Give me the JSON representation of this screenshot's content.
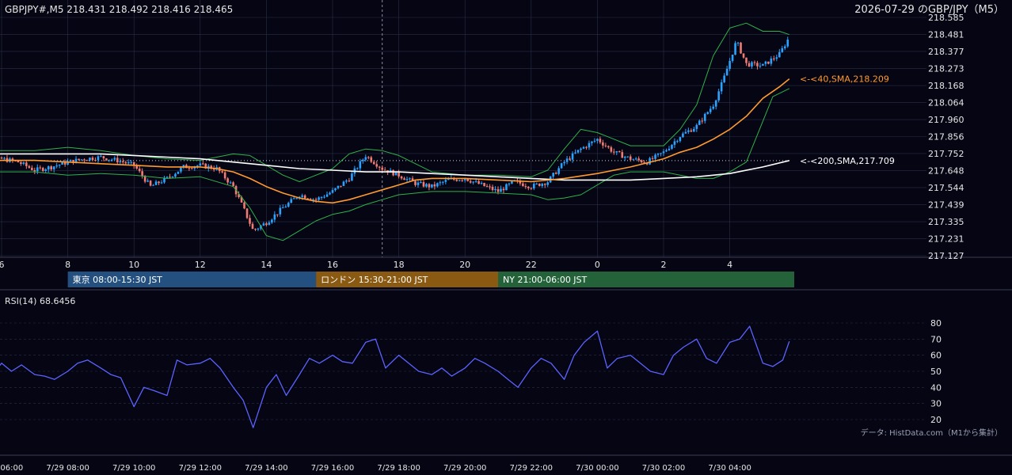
{
  "header": {
    "symbol_line": "GBPJPY#,M5 218.431 218.492 218.416 218.465",
    "title": "2026-07-29 のGBP/JPY（M5）"
  },
  "colors": {
    "background": "#050514",
    "grid": "#2a2f45",
    "bull": "#29a3ff",
    "bear": "#f07b73",
    "sma40": "#ff9a2e",
    "sma200": "#ffffff",
    "bollinger": "#2fb24a",
    "rsi": "#5b63ff",
    "tokyo": "#24507f",
    "london": "#8a5a12",
    "ny": "#24633a"
  },
  "chart_data": [
    {
      "type": "candlestick",
      "symbol": "GBPJPY#",
      "timeframe": "M5",
      "ohlc_last": {
        "open": 218.431,
        "high": 218.492,
        "low": 218.416,
        "close": 218.465
      },
      "ylim": [
        217.127,
        218.585
      ],
      "y_ticks": [
        "218.585",
        "218.481",
        "218.377",
        "218.273",
        "218.168",
        "218.064",
        "217.960",
        "217.856",
        "217.752",
        "217.648",
        "217.544",
        "217.439",
        "217.335",
        "217.231",
        "217.127"
      ],
      "x_ticks": [
        "6",
        "8",
        "10",
        "12",
        "14",
        "16",
        "18",
        "20",
        "22",
        "0",
        "2",
        "4"
      ],
      "x_tick_hours": [
        6,
        8,
        10,
        12,
        14,
        16,
        18,
        20,
        22,
        24,
        26,
        28
      ],
      "indicators": [
        {
          "name": "<-<40,SMA,218.209",
          "value": 218.209
        },
        {
          "name": "<-<200,SMA,217.709",
          "value": 217.709
        }
      ],
      "reference_line": 217.709,
      "vertical_marker_hour": 17.5,
      "sessions": [
        {
          "label": "東京 08:00-15:30 JST",
          "start": 8,
          "end": 15.5
        },
        {
          "label": "ロンドン 15:30-21:00 JST",
          "start": 15.5,
          "end": 21
        },
        {
          "label": "NY 21:00-06:00 JST",
          "start": 21,
          "end": 30
        }
      ],
      "close_path": {
        "hours": [
          5.0,
          5.5,
          6.0,
          6.5,
          7.0,
          7.5,
          8.0,
          8.5,
          9.0,
          9.5,
          10.0,
          10.5,
          11.0,
          11.5,
          12.0,
          12.5,
          13.0,
          13.3,
          13.6,
          14.0,
          14.5,
          15.0,
          15.5,
          16.0,
          16.5,
          17.0,
          17.5,
          18.0,
          18.5,
          19.0,
          19.5,
          20.0,
          20.5,
          21.0,
          21.5,
          22.0,
          22.5,
          23.0,
          23.5,
          24.0,
          24.5,
          25.0,
          25.5,
          26.0,
          26.5,
          27.0,
          27.5,
          27.8,
          28.2,
          28.5,
          29.0,
          29.5,
          29.8
        ],
        "close": [
          217.7,
          217.68,
          217.72,
          217.7,
          217.65,
          217.67,
          217.7,
          217.72,
          217.73,
          217.71,
          217.68,
          217.55,
          217.6,
          217.67,
          217.68,
          217.66,
          217.55,
          217.42,
          217.28,
          217.33,
          217.42,
          217.5,
          217.47,
          217.52,
          217.6,
          217.74,
          217.66,
          217.62,
          217.57,
          217.55,
          217.59,
          217.6,
          217.56,
          217.52,
          217.58,
          217.55,
          217.58,
          217.7,
          217.78,
          217.84,
          217.76,
          217.72,
          217.7,
          217.76,
          217.86,
          217.92,
          218.05,
          218.2,
          218.44,
          218.3,
          218.29,
          218.36,
          218.465
        ]
      },
      "sma40": {
        "hours": [
          5.0,
          6.0,
          7.0,
          8.0,
          9.0,
          10.0,
          11.0,
          12.0,
          12.5,
          13.0,
          13.5,
          14.0,
          14.5,
          15.0,
          15.5,
          16.0,
          16.5,
          17.0,
          17.5,
          18.0,
          18.5,
          19.0,
          20.0,
          21.0,
          22.0,
          23.0,
          24.0,
          25.0,
          26.0,
          26.5,
          27.0,
          27.5,
          28.0,
          28.5,
          29.0,
          29.5,
          29.8
        ],
        "values": [
          217.7,
          217.71,
          217.71,
          217.7,
          217.69,
          217.68,
          217.67,
          217.67,
          217.66,
          217.64,
          217.6,
          217.55,
          217.51,
          217.48,
          217.46,
          217.45,
          217.47,
          217.5,
          217.53,
          217.56,
          217.59,
          217.6,
          217.6,
          217.59,
          217.58,
          217.6,
          217.63,
          217.67,
          217.72,
          217.76,
          217.79,
          217.84,
          217.9,
          217.98,
          218.09,
          218.16,
          218.209
        ]
      },
      "sma200": {
        "hours": [
          5.0,
          6.0,
          7.0,
          8.0,
          9.0,
          10.0,
          11.0,
          12.0,
          13.0,
          14.0,
          15.0,
          16.0,
          17.0,
          18.0,
          19.0,
          20.0,
          21.0,
          22.0,
          23.0,
          24.0,
          25.0,
          26.0,
          27.0,
          28.0,
          29.0,
          29.8
        ],
        "values": [
          217.75,
          217.75,
          217.75,
          217.75,
          217.75,
          217.74,
          217.73,
          217.72,
          217.7,
          217.68,
          217.66,
          217.65,
          217.64,
          217.64,
          217.63,
          217.62,
          217.61,
          217.6,
          217.59,
          217.59,
          217.59,
          217.6,
          217.61,
          217.63,
          217.67,
          217.709
        ]
      },
      "bollinger_upper": {
        "hours": [
          5.0,
          6.0,
          7.0,
          8.0,
          9.0,
          10.0,
          11.0,
          12.0,
          13.0,
          13.5,
          14.0,
          14.5,
          15.0,
          16.0,
          16.5,
          17.0,
          17.5,
          18.0,
          19.0,
          20.0,
          21.0,
          22.0,
          22.5,
          23.0,
          23.5,
          24.0,
          25.0,
          26.0,
          26.5,
          27.0,
          27.5,
          28.0,
          28.5,
          29.0,
          29.5,
          29.8
        ],
        "values": [
          217.77,
          217.77,
          217.77,
          217.79,
          217.77,
          217.74,
          217.72,
          217.71,
          217.75,
          217.74,
          217.68,
          217.62,
          217.58,
          217.66,
          217.75,
          217.78,
          217.77,
          217.74,
          217.64,
          217.62,
          217.62,
          217.61,
          217.65,
          217.78,
          217.9,
          217.88,
          217.8,
          217.8,
          217.9,
          218.05,
          218.35,
          218.52,
          218.55,
          218.5,
          218.5,
          218.48
        ]
      },
      "bollinger_lower": {
        "hours": [
          5.0,
          6.0,
          7.0,
          8.0,
          9.0,
          10.0,
          11.0,
          12.0,
          13.0,
          13.5,
          14.0,
          14.5,
          15.0,
          15.5,
          16.0,
          16.5,
          17.0,
          17.5,
          18.0,
          19.0,
          20.0,
          21.0,
          22.0,
          22.5,
          23.0,
          23.5,
          24.0,
          24.5,
          25.0,
          26.0,
          26.5,
          27.0,
          27.5,
          28.0,
          28.5,
          29.0,
          29.3,
          29.8
        ],
        "values": [
          217.64,
          217.64,
          217.64,
          217.62,
          217.63,
          217.62,
          217.6,
          217.61,
          217.55,
          217.42,
          217.25,
          217.22,
          217.28,
          217.34,
          217.38,
          217.4,
          217.44,
          217.47,
          217.5,
          217.52,
          217.52,
          217.51,
          217.5,
          217.47,
          217.48,
          217.5,
          217.56,
          217.62,
          217.64,
          217.64,
          217.62,
          217.6,
          217.6,
          217.64,
          217.7,
          217.95,
          218.1,
          218.15
        ]
      }
    },
    {
      "type": "line",
      "name": "RSI(14) 68.6456",
      "ylim": [
        15,
        85
      ],
      "y_ticks": [
        "80",
        "70",
        "60",
        "50",
        "40",
        "30",
        "20"
      ],
      "x_ticks": [
        "7/29 06:00",
        "7/29 08:00",
        "7/29 10:00",
        "7/29 12:00",
        "7/29 14:00",
        "7/29 16:00",
        "7/29 18:00",
        "7/29 20:00",
        "7/29 22:00",
        "7/30 00:00",
        "7/30 02:00",
        "7/30 04:00"
      ],
      "hours": [
        5.0,
        5.3,
        5.6,
        6.0,
        6.3,
        6.6,
        7.0,
        7.3,
        7.6,
        8.0,
        8.3,
        8.6,
        9.0,
        9.3,
        9.6,
        10.0,
        10.3,
        10.6,
        11.0,
        11.3,
        11.6,
        12.0,
        12.3,
        12.6,
        13.0,
        13.3,
        13.6,
        14.0,
        14.3,
        14.6,
        15.0,
        15.3,
        15.6,
        16.0,
        16.3,
        16.6,
        17.0,
        17.3,
        17.6,
        18.0,
        18.3,
        18.6,
        19.0,
        19.3,
        19.6,
        20.0,
        20.3,
        20.6,
        21.0,
        21.3,
        21.6,
        22.0,
        22.3,
        22.6,
        23.0,
        23.3,
        23.6,
        24.0,
        24.3,
        24.6,
        25.0,
        25.3,
        25.6,
        26.0,
        26.3,
        26.6,
        27.0,
        27.3,
        27.6,
        28.0,
        28.3,
        28.6,
        29.0,
        29.3,
        29.6,
        29.8
      ],
      "values": [
        38,
        55,
        45,
        55,
        50,
        54,
        48,
        47,
        45,
        50,
        55,
        57,
        52,
        48,
        46,
        28,
        40,
        38,
        35,
        57,
        54,
        55,
        58,
        52,
        40,
        32,
        15,
        40,
        48,
        35,
        48,
        58,
        55,
        60,
        56,
        55,
        68,
        70,
        52,
        60,
        55,
        50,
        48,
        52,
        47,
        52,
        58,
        55,
        50,
        45,
        40,
        52,
        58,
        55,
        45,
        60,
        68,
        75,
        52,
        58,
        60,
        55,
        50,
        48,
        60,
        65,
        70,
        58,
        55,
        68,
        70,
        78,
        55,
        53,
        57,
        68.6456
      ]
    }
  ],
  "footer": {
    "source": "データ: HistData.com（M1から集計）"
  }
}
